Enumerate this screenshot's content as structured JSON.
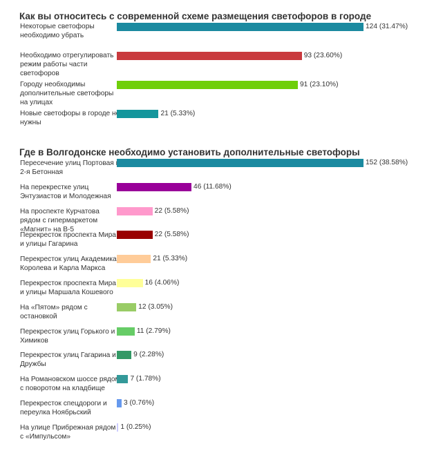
{
  "chart_data": [
    {
      "type": "bar",
      "orientation": "horizontal",
      "title": "Как вы относитесь с современной схеме размещения светофоров в городе",
      "categories": [
        "Некоторые светофоры необходимо убрать",
        "Необходимо отрегулировать режим работы части светофоров",
        "Городу необходимы дополнительные светофоры на улицах",
        "Новые светофоры в городе не нужны"
      ],
      "values": [
        124,
        93,
        91,
        21
      ],
      "value_labels": [
        "124 (31.47%)",
        "93 (23.60%)",
        "91 (23.10%)",
        "21 (5.33%)"
      ],
      "colors": [
        "#1b8aa0",
        "#c93a3e",
        "#6fcf0a",
        "#14969c"
      ],
      "xlim": [
        0,
        124
      ]
    },
    {
      "type": "bar",
      "orientation": "horizontal",
      "title": "Где в Волгодонске необходимо установить дополнительные светофоры",
      "categories": [
        "Пересечение улиц Портовая и 2-я Бетонная",
        "На перекрестке улиц Энтузиастов и Молодежная",
        "На проспекте Курчатова рядом с гипермаркетом «Магнит» на В-5",
        "Перекресток проспекта Мира и улицы Гагарина",
        "Перекресток улиц Академика Королева и Карла Маркса",
        "Перекресток проспекта Мира и улицы Маршала Кошевого",
        "На «Пятом» рядом с остановкой",
        "Перекресток улиц Горького и Химиков",
        "Перекресток улиц Гагарина и Дружбы",
        "На Романовском шоссе рядом с поворотом на кладбище",
        "Перекресток спецдороги и переулка Ноябрьский",
        "На улице Прибрежная рядом с «Импульсом»"
      ],
      "values": [
        152,
        46,
        22,
        22,
        21,
        16,
        12,
        11,
        9,
        7,
        3,
        1
      ],
      "value_labels": [
        "152 (38.58%)",
        "46 (11.68%)",
        "22 (5.58%)",
        "22 (5.58%)",
        "21 (5.33%)",
        "16 (4.06%)",
        "12 (3.05%)",
        "11 (2.79%)",
        "9 (2.28%)",
        "7 (1.78%)",
        "3 (0.76%)",
        "1 (0.25%)"
      ],
      "colors": [
        "#1b8aa0",
        "#990099",
        "#ff99cc",
        "#990000",
        "#ffcc99",
        "#ffff99",
        "#99cc66",
        "#66cc66",
        "#339966",
        "#339999",
        "#6699ee",
        "#ccccff"
      ],
      "xlim": [
        0,
        152
      ]
    }
  ]
}
